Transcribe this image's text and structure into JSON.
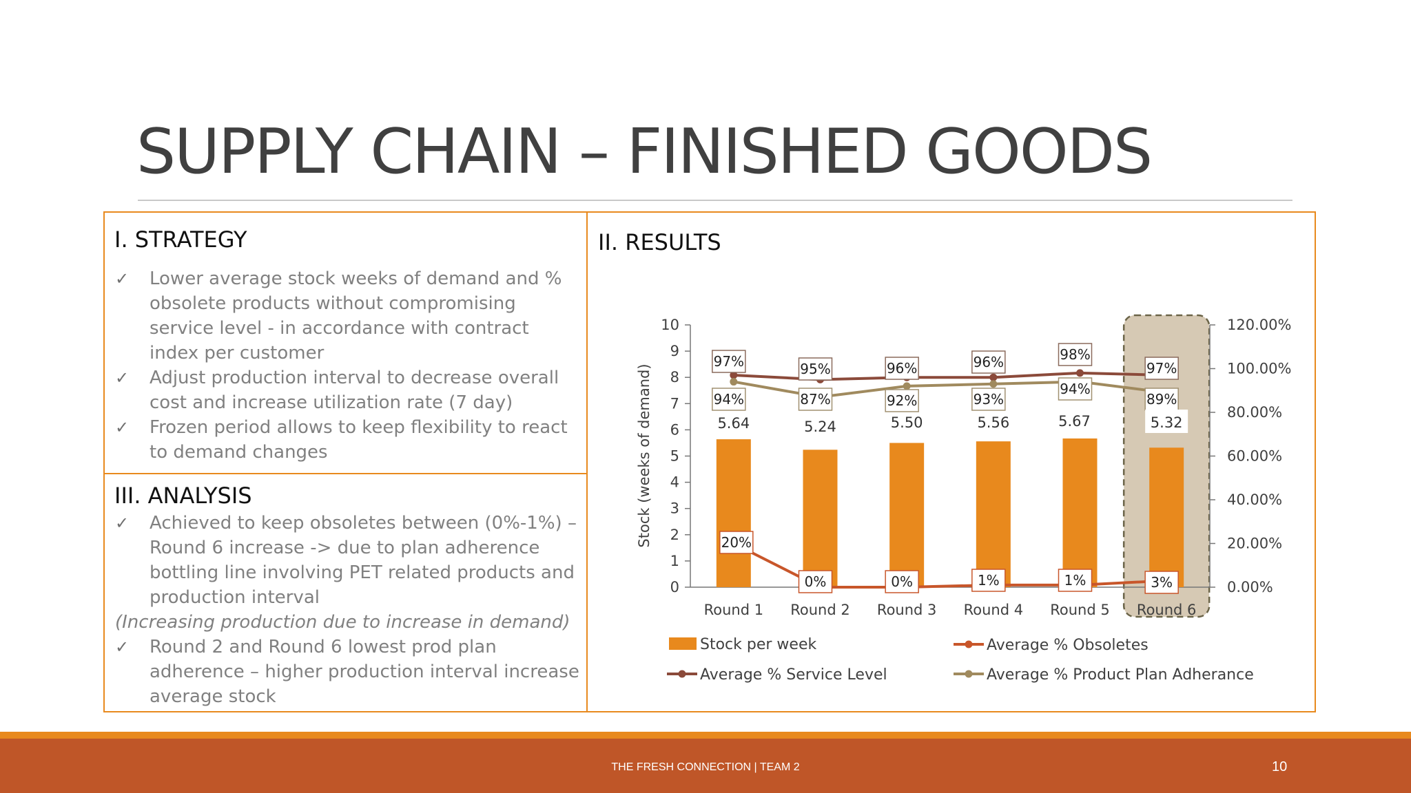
{
  "slide": {
    "title": "SUPPLY CHAIN – FINISHED GOODS",
    "page_number": "10",
    "footer": "THE FRESH CONNECTION  |   TEAM 2"
  },
  "strategy": {
    "heading": "I. STRATEGY",
    "bullets": [
      "Lower average stock weeks of demand and % obsolete products without compromising service level -  in accordance with contract index per customer",
      "Adjust production interval to decrease overall cost and increase utilization rate (7 day)",
      "Frozen period allows to keep flexibility to react to demand changes"
    ]
  },
  "analysis": {
    "heading": "III. ANALYSIS",
    "bullet1": "Achieved to keep obsoletes between (0%-1%) – Round 6 increase -> due to plan adherence bottling line involving PET related products and production interval",
    "note": "(Increasing production due to increase in demand)",
    "bullet2": "Round 2 and Round 6 lowest prod plan adherence – higher production interval increase average stock"
  },
  "results": {
    "heading": "II. RESULTS"
  },
  "colors": {
    "accent": "#e8891d",
    "footer": "#bf5628",
    "service": "#8b4a3a",
    "adherence": "#a08a5e",
    "obsolete": "#c8562a",
    "highlight": "#d6c9b4"
  },
  "chart_data": {
    "type": "bar",
    "categories": [
      "Round 1",
      "Round 2",
      "Round 3",
      "Round 4",
      "Round 5",
      "Round 6"
    ],
    "highlight_category": "Round 6",
    "ylabel": "Stock (weeks of demand)",
    "ylim": [
      0,
      10
    ],
    "yticks": [
      "0",
      "1",
      "2",
      "3",
      "4",
      "5",
      "6",
      "7",
      "8",
      "9",
      "10"
    ],
    "y2lim": [
      0,
      120
    ],
    "y2ticks": [
      "0.00%",
      "20.00%",
      "40.00%",
      "60.00%",
      "80.00%",
      "100.00%",
      "120.00%"
    ],
    "series": [
      {
        "name": "Stock per week",
        "kind": "bar",
        "axis": "left",
        "values": [
          5.64,
          5.24,
          5.5,
          5.56,
          5.67,
          5.32
        ],
        "labels": [
          "5.64",
          "5.24",
          "5.50",
          "5.56",
          "5.67",
          "5.32"
        ]
      },
      {
        "name": "Average % Obsoletes",
        "kind": "line",
        "axis": "right",
        "values": [
          20,
          0,
          0,
          1,
          1,
          3
        ],
        "labels": [
          "20%",
          "0%",
          "0%",
          "1%",
          "1%",
          "3%"
        ]
      },
      {
        "name": "Average % Service Level",
        "kind": "line",
        "axis": "right",
        "values": [
          97,
          95,
          96,
          96,
          98,
          97
        ],
        "labels": [
          "97%",
          "95%",
          "96%",
          "96%",
          "98%",
          "97%"
        ]
      },
      {
        "name": "Average % Product Plan Adherance",
        "kind": "line",
        "axis": "right",
        "values": [
          94,
          87,
          92,
          93,
          94,
          89
        ],
        "labels": [
          "94%",
          "87%",
          "92%",
          "93%",
          "94%",
          "89%"
        ]
      }
    ],
    "legend_position": "bottom"
  }
}
